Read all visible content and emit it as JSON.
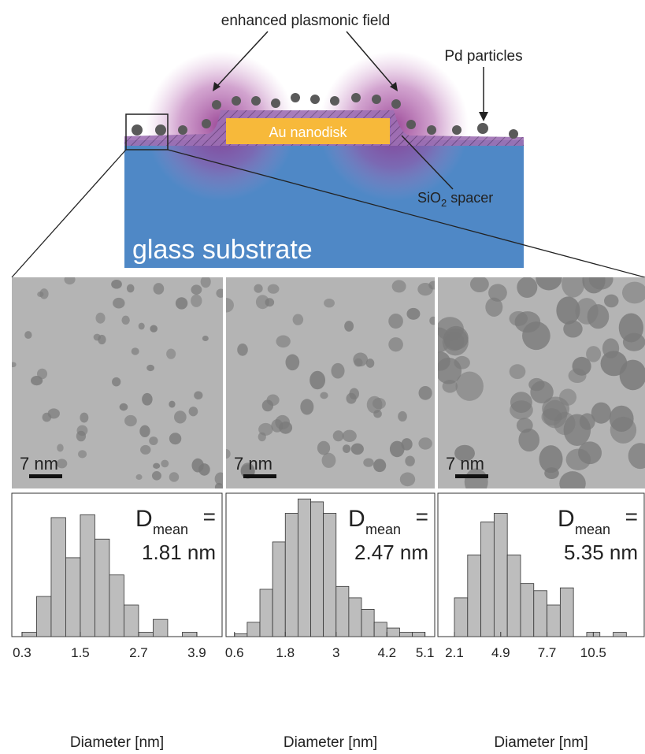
{
  "diagram": {
    "field_label": "enhanced plasmonic field",
    "particles_label": "Pd particles",
    "disk_label": "Au nanodisk",
    "spacer_label": [
      "SiO",
      "2",
      "spacer"
    ],
    "substrate_label": "glass substrate"
  },
  "micrographs": {
    "scale_bars": [
      "7 nm",
      "7 nm",
      "7 nm"
    ]
  },
  "chart_data": [
    {
      "type": "histogram",
      "annotation_symbol": "D",
      "annotation_subscript": "mean",
      "annotation_equals": "=",
      "annotation_value": "1.81 nm",
      "xlabel": "Diameter [nm]",
      "bins": [
        0.3,
        0.6,
        0.9,
        1.2,
        1.5,
        1.8,
        2.1,
        2.4,
        2.7,
        3.0,
        3.3,
        3.6,
        3.9
      ],
      "values": [
        3,
        28,
        83,
        55,
        85,
        68,
        43,
        22,
        3,
        12,
        0,
        3
      ],
      "xlim": [
        0.09,
        4.42
      ],
      "ylim": [
        0,
        100
      ],
      "xticks": [
        0.3,
        1.5,
        2.7,
        3.9
      ],
      "color": "#bdbdbd"
    },
    {
      "type": "histogram",
      "annotation_symbol": "D",
      "annotation_subscript": "mean",
      "annotation_equals": "=",
      "annotation_value": "2.47 nm",
      "xlabel": "Diameter [nm]",
      "bins": [
        0.6,
        0.9,
        1.2,
        1.5,
        1.8,
        2.1,
        2.4,
        2.7,
        3.0,
        3.3,
        3.6,
        3.9,
        4.2,
        4.5,
        4.8,
        5.1
      ],
      "values": [
        2,
        10,
        33,
        66,
        86,
        96,
        94,
        86,
        35,
        27,
        19,
        10,
        6,
        3,
        3
      ],
      "xlim": [
        0.4,
        5.33
      ],
      "ylim": [
        0,
        100
      ],
      "xticks": [
        0.6,
        1.8,
        3,
        4.2,
        5.1
      ],
      "color": "#bdbdbd"
    },
    {
      "type": "histogram",
      "annotation_symbol": "D",
      "annotation_subscript": "mean",
      "annotation_equals": "=",
      "annotation_value": "5.35 nm",
      "xlabel": "Diameter [nm]",
      "bins": [
        2.1,
        2.9,
        3.7,
        4.5,
        5.3,
        6.1,
        6.9,
        7.7,
        8.5,
        9.3,
        10.1,
        10.9,
        11.7,
        12.5
      ],
      "values": [
        27,
        57,
        80,
        86,
        57,
        37,
        32,
        22,
        34,
        0,
        3,
        0,
        3
      ],
      "xlim": [
        1.1,
        13.58
      ],
      "ylim": [
        0,
        100
      ],
      "xticks": [
        2.1,
        4.9,
        7.7,
        10.5
      ],
      "color": "#bdbdbd"
    }
  ]
}
